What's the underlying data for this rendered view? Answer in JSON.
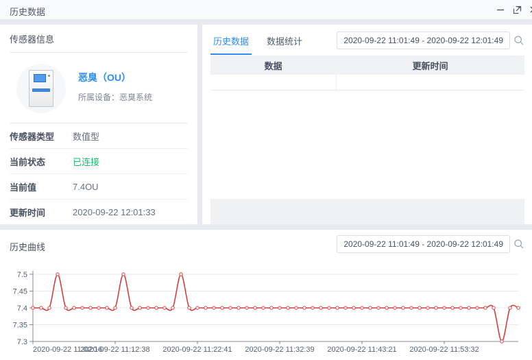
{
  "window": {
    "title": "历史数据",
    "icons": {
      "minimize": "minimize-icon",
      "expand": "expand-icon",
      "close": "close-icon"
    }
  },
  "sensor_panel": {
    "title": "传感器信息",
    "name": "恶臭（OU）",
    "device": "所属设备：恶臭系统",
    "fields": [
      {
        "label": "传感器类型",
        "value": "数值型"
      },
      {
        "label": "当前状态",
        "value": "已连接"
      },
      {
        "label": "当前值",
        "value": "7.4OU"
      },
      {
        "label": "更新时间",
        "value": "2020-09-22 12:01:33"
      }
    ]
  },
  "history_panel": {
    "tabs": [
      {
        "label": "历史数据",
        "active": true
      },
      {
        "label": "数据统计",
        "active": false
      }
    ],
    "date_range": "2020-09-22 11:01:49 - 2020-09-22 12:01:49",
    "table": {
      "headers": [
        "数据",
        "更新时间"
      ],
      "rows": [
        [
          "",
          ""
        ]
      ]
    }
  },
  "curve_panel": {
    "title": "历史曲线",
    "date_range": "2020-09-22 11:01:49 - 2020-09-22 12:01:49"
  },
  "colors": {
    "accent_blue": "#2d8cf0",
    "status_green": "#19be6b",
    "line_red": "#d43f3f",
    "grid": "#e7e7e7",
    "axis": "#888888"
  },
  "chart_data": {
    "type": "line",
    "title": "历史曲线",
    "smooth": true,
    "grid": true,
    "line_color": "#d43f3f",
    "marker": "open-circle",
    "ylim": [
      7.3,
      7.5
    ],
    "y_ticks": [
      7.3,
      7.35,
      7.4,
      7.45,
      7.5
    ],
    "x_tick_indices": [
      0,
      10,
      20,
      30,
      40,
      50
    ],
    "x_tick_labels": [
      "2020-09-22 11:02:16",
      "2020-09-22 11:12:38",
      "2020-09-22 11:22:41",
      "2020-09-22 11:32:39",
      "2020-09-22 11:43:21",
      "2020-09-22 11:53:32"
    ],
    "values": [
      7.4,
      7.4,
      7.4,
      7.5,
      7.4,
      7.4,
      7.4,
      7.4,
      7.4,
      7.4,
      7.4,
      7.5,
      7.4,
      7.4,
      7.4,
      7.4,
      7.4,
      7.4,
      7.5,
      7.4,
      7.4,
      7.4,
      7.4,
      7.4,
      7.4,
      7.4,
      7.4,
      7.4,
      7.4,
      7.4,
      7.4,
      7.4,
      7.4,
      7.4,
      7.4,
      7.4,
      7.4,
      7.4,
      7.4,
      7.4,
      7.4,
      7.4,
      7.4,
      7.4,
      7.4,
      7.4,
      7.4,
      7.4,
      7.4,
      7.4,
      7.4,
      7.4,
      7.4,
      7.4,
      7.4,
      7.4,
      7.4,
      7.3,
      7.4,
      7.4
    ]
  }
}
